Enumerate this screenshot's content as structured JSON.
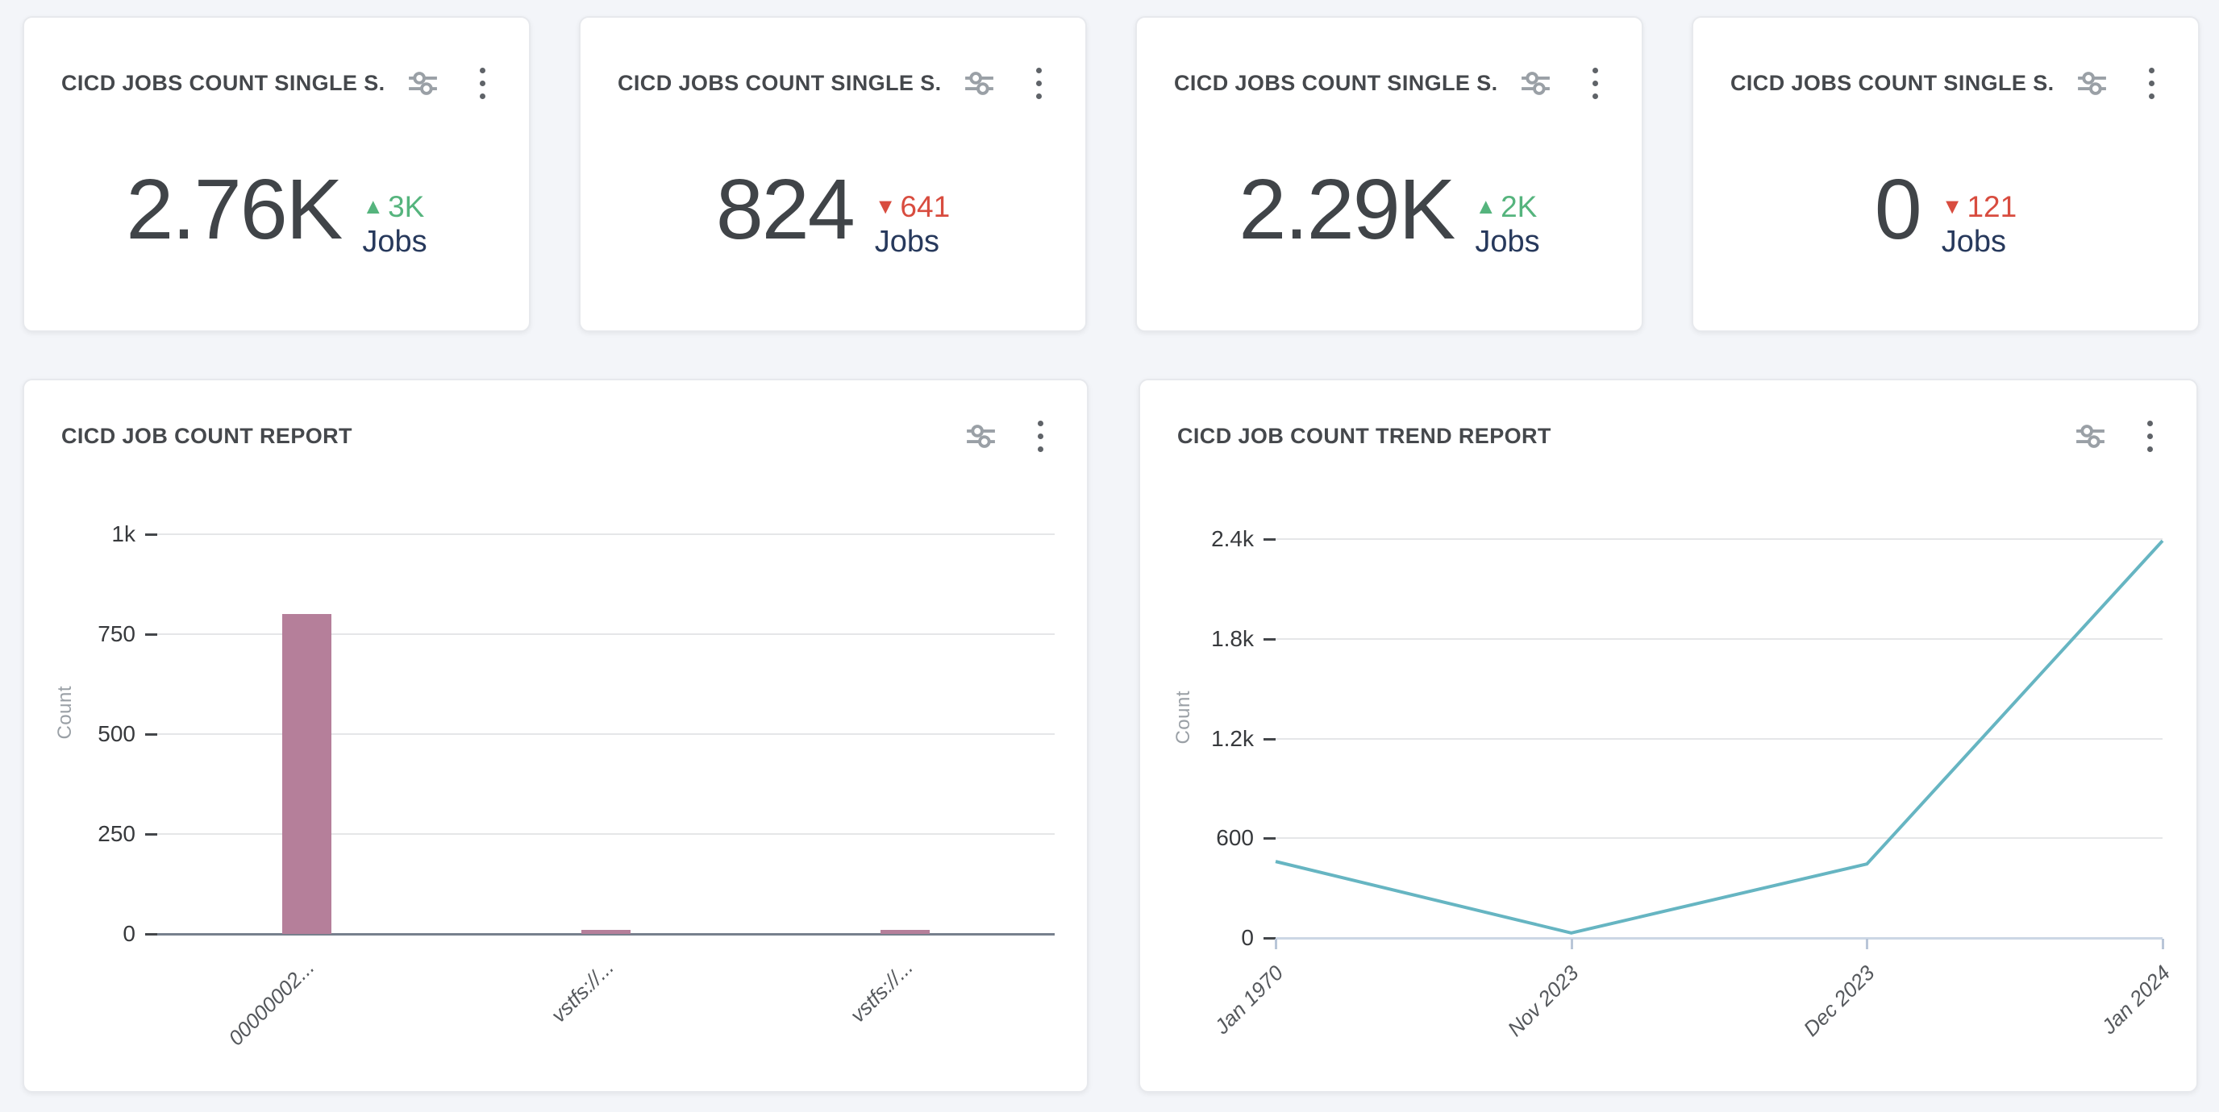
{
  "colors": {
    "page_bg": "#f3f5f9",
    "card_bg": "#ffffff",
    "title_text": "#45484c",
    "value_text": "#404448",
    "green_up": "#55b47d",
    "red_down": "#d84c3f",
    "unit_navy": "#27395c",
    "bar_fill": "#b57f9a",
    "line_stroke": "#66b5c2",
    "grid_line": "#e5e6e8",
    "bar_axis_line": "#77808d",
    "line_axis_line": "#ccd7e5",
    "icon_gray": "#9aa0a6",
    "kebab_gray": "#5f6368"
  },
  "icons": {
    "up": "▲",
    "down": "▼",
    "sliders": "sliders-icon",
    "kebab": "kebab-menu-icon"
  },
  "stat_cards": [
    {
      "title": "CICD JOBS COUNT SINGLE S...",
      "value": "2.76K",
      "delta": "3K",
      "delta_dir": "up",
      "unit": "Jobs"
    },
    {
      "title": "CICD JOBS COUNT SINGLE S...",
      "value": "824",
      "delta": "641",
      "delta_dir": "down",
      "unit": "Jobs"
    },
    {
      "title": "CICD JOBS COUNT SINGLE S...",
      "value": "2.29K",
      "delta": "2K",
      "delta_dir": "up",
      "unit": "Jobs"
    },
    {
      "title": "CICD JOBS COUNT SINGLE S...",
      "value": "0",
      "delta": "121",
      "delta_dir": "down",
      "unit": "Jobs"
    }
  ],
  "chart_data": [
    {
      "type": "bar",
      "title": "CICD JOB COUNT REPORT",
      "xlabel": "",
      "ylabel": "Count",
      "categories": [
        "00000002...",
        "vstfs://...",
        "vstfs://..."
      ],
      "values": [
        800,
        10,
        10
      ],
      "yticks": [
        "0",
        "250",
        "500",
        "750",
        "1k"
      ],
      "ytick_values": [
        0,
        250,
        500,
        750,
        1000
      ],
      "ylim": [
        0,
        1000
      ],
      "grid": true,
      "legend": "none",
      "bar_color": "#b57f9a"
    },
    {
      "type": "line",
      "title": "CICD JOB COUNT TREND REPORT",
      "xlabel": "",
      "ylabel": "Count",
      "categories": [
        "Jan 1970",
        "Nov 2023",
        "Dec 2023",
        "Jan 2024"
      ],
      "values": [
        460,
        30,
        445,
        2390
      ],
      "yticks": [
        "0",
        "600",
        "1.2k",
        "1.8k",
        "2.4k"
      ],
      "ytick_values": [
        0,
        600,
        1200,
        1800,
        2400
      ],
      "ylim": [
        0,
        2400
      ],
      "grid": true,
      "legend": "none",
      "line_color": "#66b5c2"
    }
  ]
}
